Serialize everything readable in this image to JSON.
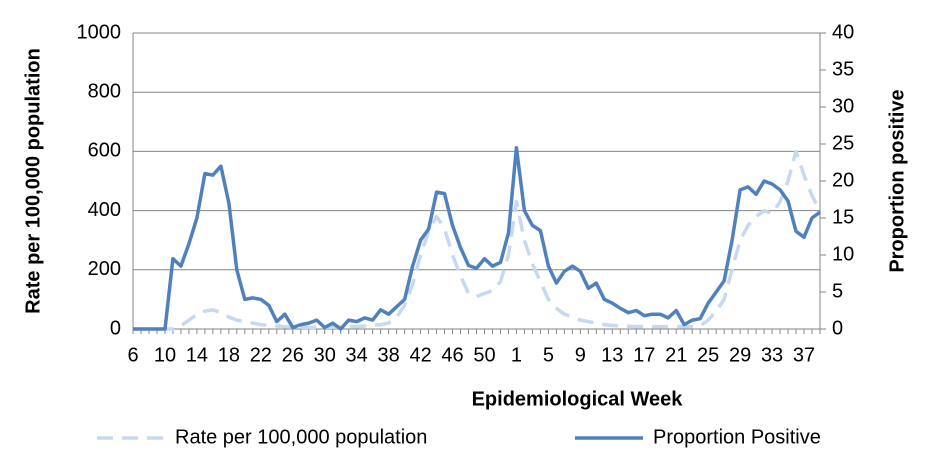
{
  "chart_data": {
    "type": "line",
    "x_label": "Epidemiological Week",
    "y_label": "Rate per 100,000 population",
    "y2_label": "Proportion positive",
    "categories": [
      "6",
      null,
      null,
      null,
      "10",
      null,
      null,
      null,
      "14",
      null,
      null,
      null,
      "18",
      null,
      null,
      null,
      "22",
      null,
      null,
      null,
      "26",
      null,
      null,
      null,
      "30",
      null,
      null,
      null,
      "34",
      null,
      null,
      null,
      "38",
      null,
      null,
      null,
      "42",
      null,
      null,
      null,
      "46",
      null,
      null,
      null,
      "50",
      null,
      null,
      null,
      "1",
      null,
      null,
      null,
      "5",
      null,
      null,
      null,
      "9",
      null,
      null,
      null,
      "13",
      null,
      null,
      null,
      "17",
      null,
      null,
      null,
      "21",
      null,
      null,
      null,
      "25",
      null,
      null,
      null,
      "29",
      null,
      null,
      null,
      "33",
      null,
      null,
      null,
      "37",
      null,
      null
    ],
    "series": [
      {
        "name": "Rate per 100,000 population",
        "color": "#c6d9f1",
        "dash": true,
        "axis": "y",
        "values": [
          0,
          0,
          0,
          0,
          0,
          0,
          10,
          30,
          50,
          60,
          65,
          55,
          40,
          30,
          25,
          20,
          15,
          12,
          10,
          8,
          6,
          6,
          5,
          5,
          6,
          6,
          7,
          8,
          8,
          10,
          12,
          15,
          20,
          40,
          80,
          150,
          250,
          330,
          380,
          340,
          250,
          180,
          120,
          110,
          120,
          130,
          160,
          250,
          430,
          300,
          220,
          160,
          100,
          70,
          50,
          40,
          30,
          25,
          20,
          15,
          12,
          10,
          9,
          8,
          8,
          8,
          8,
          8,
          8,
          8,
          8,
          10,
          30,
          60,
          100,
          200,
          300,
          350,
          380,
          400,
          390,
          430,
          500,
          600,
          520,
          450,
          400
        ]
      },
      {
        "name": "Proportion Positive",
        "color": "#4f81bd",
        "dash": false,
        "axis": "y2",
        "values": [
          0,
          0,
          0,
          0,
          0,
          9.5,
          8.5,
          11.5,
          15,
          21,
          20.8,
          22,
          17,
          8,
          4,
          4.2,
          4,
          3.2,
          1,
          2,
          0.2,
          0.6,
          0.8,
          1.2,
          0.2,
          0.8,
          0,
          1.2,
          1,
          1.5,
          1.2,
          2.6,
          2,
          3,
          4,
          8.5,
          12,
          13.5,
          18.5,
          18.3,
          14,
          11,
          8.6,
          8.2,
          9.5,
          8.5,
          9,
          13,
          24.5,
          16,
          14,
          13.3,
          8.5,
          6.2,
          7.8,
          8.5,
          7.8,
          5.5,
          6.2,
          4,
          3.5,
          2.8,
          2.2,
          2.5,
          1.8,
          2,
          2,
          1.5,
          2.5,
          0.6,
          1.2,
          1.4,
          3.5,
          5,
          6.5,
          12,
          18.8,
          19.2,
          18.2,
          20,
          19.6,
          18.8,
          17.3,
          13.2,
          12.4,
          15,
          15.8
        ]
      }
    ],
    "ylim": [
      0,
      1000
    ],
    "yticks": [
      0,
      200,
      400,
      600,
      800,
      1000
    ],
    "y2lim": [
      0,
      40
    ],
    "y2ticks": [
      0,
      5,
      10,
      15,
      20,
      25,
      30,
      35,
      40
    ],
    "grid": true,
    "legend": "bottom"
  }
}
